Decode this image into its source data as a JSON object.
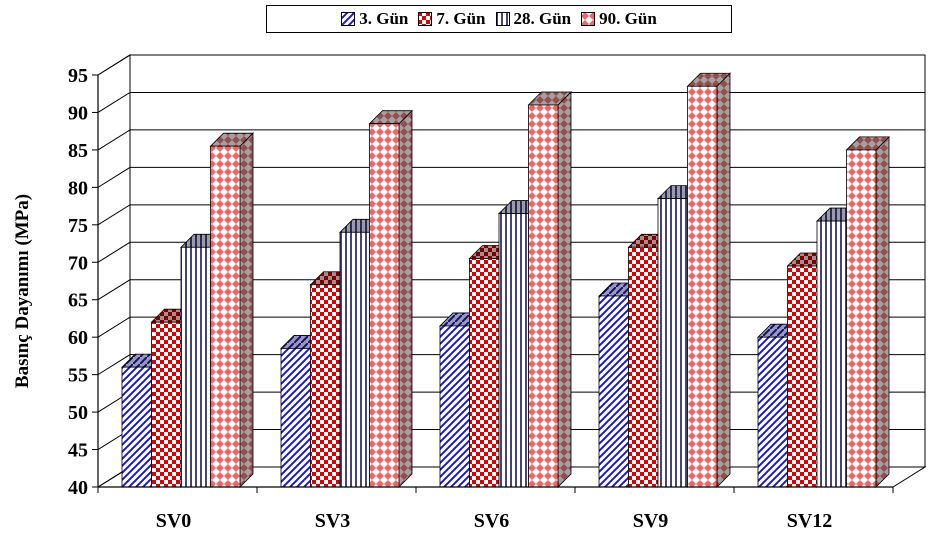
{
  "chart_data": {
    "type": "bar",
    "ylabel": "Basınç Dayanımı (MPa)",
    "xlabel": "",
    "ylim": [
      40,
      95
    ],
    "yticks": [
      40,
      45,
      50,
      55,
      60,
      65,
      70,
      75,
      80,
      85,
      90,
      95
    ],
    "categories": [
      "SV0",
      "SV3",
      "SV6",
      "SV9",
      "SV12"
    ],
    "legend_position": "top",
    "three_d": true,
    "grid": true,
    "series": [
      {
        "name": "3. Gün",
        "values": [
          56,
          58.5,
          61.5,
          65.5,
          60
        ],
        "color": "#1a1acc",
        "pattern": "diagonal-stripes"
      },
      {
        "name": "7. Gün",
        "values": [
          62,
          67,
          70.5,
          72,
          69.5
        ],
        "color": "#dd0000",
        "pattern": "checker"
      },
      {
        "name": "28. Gün",
        "values": [
          72,
          74,
          76.5,
          78.5,
          75.5
        ],
        "color": "#444488",
        "pattern": "vertical-stripes"
      },
      {
        "name": "90. Gün",
        "values": [
          85.5,
          88.5,
          91,
          93.5,
          85
        ],
        "color": "#ee6666",
        "pattern": "diamond"
      }
    ]
  }
}
